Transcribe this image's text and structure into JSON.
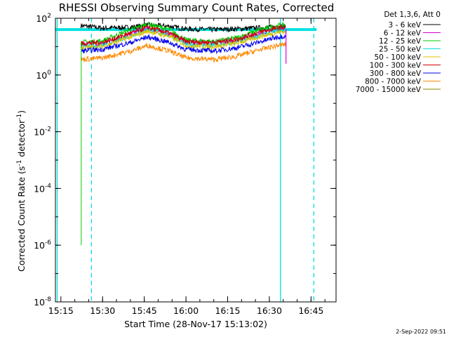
{
  "chart_data": {
    "type": "line",
    "title": "RHESSI Observing Summary Count Rates, Corrected",
    "xlabel": "Start Time (28-Nov-17 15:13:02)",
    "ylabel": "Corrected Count Rate (s⁻¹ detector⁻¹)",
    "x_tick_labels": [
      "15:15",
      "15:30",
      "15:45",
      "16:00",
      "16:15",
      "16:30",
      "16:45"
    ],
    "x_tick_minutes": [
      15.25,
      15.5,
      15.75,
      16.0,
      16.25,
      16.5,
      16.75
    ],
    "xlim_hours": [
      15.2172,
      16.9
    ],
    "y_scale": "log",
    "ylim": [
      1e-08,
      100
    ],
    "y_ticks": [
      {
        "base": "10",
        "exp": "2",
        "value": 100
      },
      {
        "base": "10",
        "exp": "0",
        "value": 1
      },
      {
        "base": "10",
        "exp": "-2",
        "value": 0.01
      },
      {
        "base": "10",
        "exp": "-4",
        "value": 0.0001
      },
      {
        "base": "10",
        "exp": "-6",
        "value": 1e-06
      },
      {
        "base": "10",
        "exp": "-8",
        "value": 1e-08
      }
    ],
    "legend_header": "Det 1,3,6, Att 0",
    "legend_position": "right",
    "series": [
      {
        "name": "3 - 6 keV",
        "color": "#000000",
        "x": [
          15.37,
          15.5,
          15.67,
          15.77,
          15.9,
          16.0,
          16.17,
          16.3,
          16.45,
          16.55,
          16.6
        ],
        "y": [
          55,
          45,
          48,
          58,
          52,
          42,
          40,
          42,
          46,
          50,
          52
        ]
      },
      {
        "name": "6 - 12 keV",
        "color": "#dd00dd",
        "x": [
          15.37,
          15.5,
          15.67,
          15.77,
          15.9,
          16.0,
          16.17,
          16.3,
          16.45,
          16.55,
          16.6
        ],
        "y": [
          12,
          13,
          28,
          45,
          28,
          15,
          13,
          17,
          30,
          40,
          42
        ]
      },
      {
        "name": "12 - 25 keV",
        "color": "#00cc00",
        "x": [
          15.37,
          15.5,
          15.67,
          15.77,
          15.9,
          16.0,
          16.17,
          16.3,
          16.45,
          16.55,
          16.6
        ],
        "y": [
          14,
          16,
          40,
          62,
          40,
          17,
          15,
          20,
          40,
          55,
          58
        ]
      },
      {
        "name": "25 - 50 keV",
        "color": "#00dddd",
        "x": [
          15.37,
          15.5,
          15.67,
          15.77,
          15.9,
          16.0,
          16.17,
          16.3,
          16.45,
          16.55,
          16.6
        ],
        "y": [
          10,
          11,
          25,
          40,
          26,
          12,
          11,
          14,
          26,
          36,
          38
        ]
      },
      {
        "name": "50 - 100 keV",
        "color": "#e0c000",
        "x": [
          15.37,
          15.5,
          15.67,
          15.77,
          15.9,
          16.0,
          16.17,
          16.3,
          16.45,
          16.55,
          16.6
        ],
        "y": [
          9,
          10,
          22,
          35,
          23,
          11,
          10,
          13,
          23,
          32,
          34
        ]
      },
      {
        "name": "100 - 300 keV",
        "color": "#cc0000",
        "x": [
          15.37,
          15.5,
          15.67,
          15.77,
          15.9,
          16.0,
          16.17,
          16.3,
          16.45,
          16.55,
          16.6
        ],
        "y": [
          13,
          14,
          30,
          48,
          30,
          15,
          14,
          18,
          33,
          46,
          48
        ]
      },
      {
        "name": "300 - 800 keV",
        "color": "#0000ee",
        "x": [
          15.37,
          15.5,
          15.67,
          15.77,
          15.9,
          16.0,
          16.17,
          16.3,
          16.45,
          16.55,
          16.6
        ],
        "y": [
          7,
          8,
          14,
          22,
          14,
          8,
          7,
          9,
          15,
          22,
          24
        ]
      },
      {
        "name": "800 - 7000 keV",
        "color": "#ff8800",
        "x": [
          15.37,
          15.5,
          15.67,
          15.77,
          15.9,
          16.0,
          16.17,
          16.3,
          16.45,
          16.55,
          16.6
        ],
        "y": [
          3.5,
          4,
          7,
          11,
          7,
          4,
          3.5,
          4.5,
          8,
          11,
          12
        ]
      },
      {
        "name": "7000 - 15000 keV",
        "color": "#888800",
        "x": [],
        "y": []
      }
    ],
    "vertical_lines": [
      {
        "x_hour": 15.2277,
        "style": "solid",
        "color": "#00e0e0"
      },
      {
        "x_hour": 15.4333,
        "style": "dashed",
        "color": "#00e0e0"
      },
      {
        "x_hour": 16.5667,
        "style": "solid",
        "color": "#00e0e0"
      },
      {
        "x_hour": 16.7667,
        "style": "dashed",
        "color": "#00e0e0"
      }
    ],
    "horizontal_band": {
      "y": 40,
      "x_start_hour": 15.2172,
      "x_end_hour": 16.7833,
      "color": "#00e0e0"
    }
  },
  "footer": {
    "date": "2-Sep-2022 09:51"
  }
}
